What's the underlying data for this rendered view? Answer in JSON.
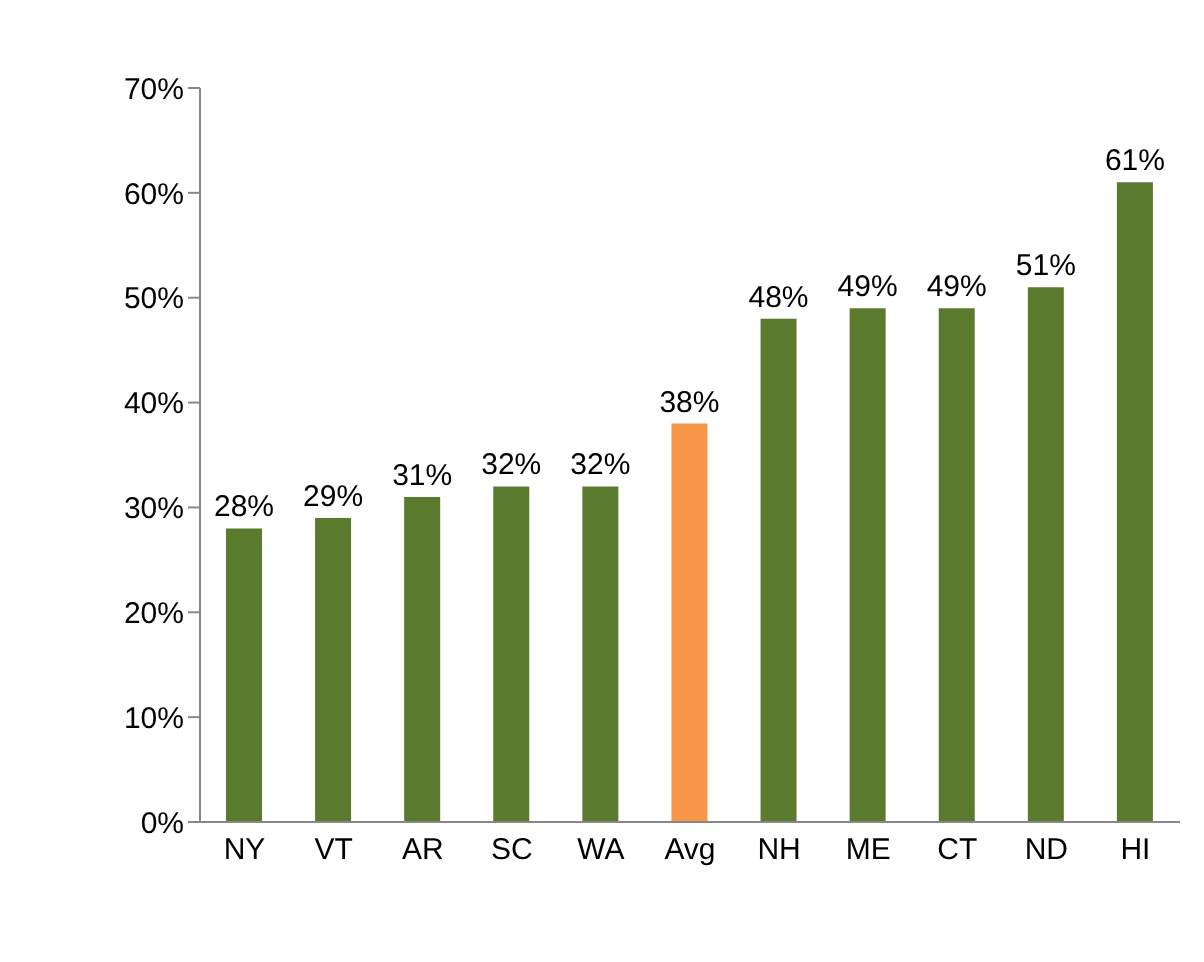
{
  "chart_data": {
    "type": "bar",
    "categories": [
      "NY",
      "VT",
      "AR",
      "SC",
      "WA",
      "Avg",
      "NH",
      "ME",
      "CT",
      "ND",
      "HI"
    ],
    "values": [
      28,
      29,
      31,
      32,
      32,
      38,
      48,
      49,
      49,
      51,
      61
    ],
    "colors": [
      "#5a7b2d",
      "#5a7b2d",
      "#5a7b2d",
      "#5a7b2d",
      "#5a7b2d",
      "#f79646",
      "#5a7b2d",
      "#5a7b2d",
      "#5a7b2d",
      "#5a7b2d",
      "#5a7b2d"
    ],
    "value_labels": [
      "28%",
      "29%",
      "31%",
      "32%",
      "32%",
      "38%",
      "48%",
      "49%",
      "49%",
      "51%",
      "61%"
    ],
    "ylim": [
      0,
      70
    ],
    "yticks": [
      {
        "value": 0,
        "label": "0%"
      },
      {
        "value": 10,
        "label": "10%"
      },
      {
        "value": 20,
        "label": "20%"
      },
      {
        "value": 30,
        "label": "30%"
      },
      {
        "value": 40,
        "label": "40%"
      },
      {
        "value": 50,
        "label": "50%"
      },
      {
        "value": 60,
        "label": "60%"
      },
      {
        "value": 70,
        "label": "70%"
      }
    ],
    "grid": false,
    "legend": false
  }
}
